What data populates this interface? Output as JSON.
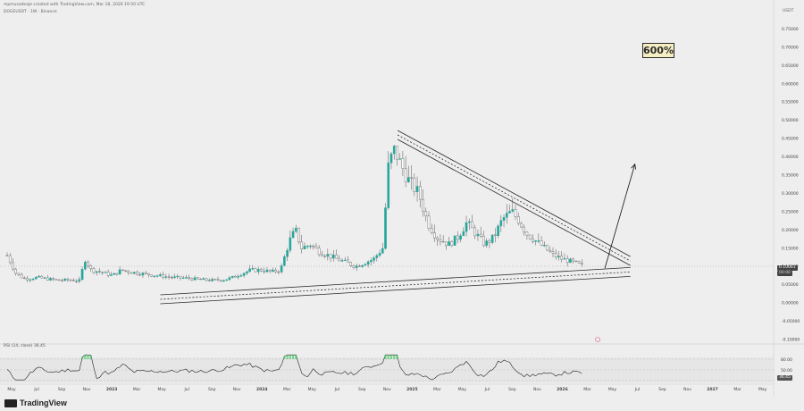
{
  "header": {
    "author_line": "mpmusadeaje created with TradingView.com, Mar 18, 2026 19:50 UTC",
    "symbol_line": "DOGEUSDT · 1W · Binance"
  },
  "annotation": {
    "target_pct": "600%"
  },
  "price_axis": {
    "currency": "USDT",
    "current_price": "0.10061",
    "current_sub": "00:00"
  },
  "rsi": {
    "label": "RSI (14, close) 36.45",
    "current_value": "36.45"
  },
  "footer": {
    "brand": "TradingView"
  },
  "colors": {
    "up": "#26a69a",
    "down": "#555555",
    "line": "#2b2b2b",
    "rsi_over": "#34c759"
  },
  "chart_data": {
    "type": "candlestick",
    "title": "",
    "ylim": [
      -0.1,
      0.8
    ],
    "y_ticks": [
      "0.75000",
      "0.70000",
      "0.65000",
      "0.60000",
      "0.55000",
      "0.50000",
      "0.45000",
      "0.40000",
      "0.35000",
      "0.30000",
      "0.25000",
      "0.20000",
      "0.15000",
      "0.10000",
      "0.05000",
      "0.00000",
      "-0.05000",
      "-0.10000"
    ],
    "x_ticks": [
      "May",
      "Jul",
      "Sep",
      "Nov",
      "2023",
      "Mar",
      "May",
      "Jul",
      "Sep",
      "Nov",
      "2024",
      "Mar",
      "May",
      "Jul",
      "Sep",
      "Nov",
      "2025",
      "Mar",
      "May",
      "Jul",
      "Sep",
      "Nov",
      "2026",
      "Mar",
      "May",
      "Jul",
      "Sep",
      "Nov",
      "2027",
      "Mar",
      "May"
    ],
    "close_path": [
      [
        2022.3,
        0.13
      ],
      [
        2022.36,
        0.08
      ],
      [
        2022.42,
        0.065
      ],
      [
        2022.5,
        0.07
      ],
      [
        2022.58,
        0.065
      ],
      [
        2022.64,
        0.062
      ],
      [
        2022.72,
        0.063
      ],
      [
        2022.78,
        0.06
      ],
      [
        2022.82,
        0.12
      ],
      [
        2022.86,
        0.09
      ],
      [
        2022.92,
        0.085
      ],
      [
        2023.0,
        0.075
      ],
      [
        2023.06,
        0.09
      ],
      [
        2023.12,
        0.085
      ],
      [
        2023.2,
        0.08
      ],
      [
        2023.3,
        0.075
      ],
      [
        2023.4,
        0.07
      ],
      [
        2023.5,
        0.068
      ],
      [
        2023.58,
        0.064
      ],
      [
        2023.66,
        0.062
      ],
      [
        2023.74,
        0.063
      ],
      [
        2023.8,
        0.07
      ],
      [
        2023.86,
        0.08
      ],
      [
        2023.92,
        0.09
      ],
      [
        2024.0,
        0.09
      ],
      [
        2024.06,
        0.085
      ],
      [
        2024.12,
        0.09
      ],
      [
        2024.18,
        0.17
      ],
      [
        2024.22,
        0.2
      ],
      [
        2024.26,
        0.15
      ],
      [
        2024.32,
        0.16
      ],
      [
        2024.38,
        0.14
      ],
      [
        2024.44,
        0.13
      ],
      [
        2024.5,
        0.12
      ],
      [
        2024.56,
        0.11
      ],
      [
        2024.62,
        0.1
      ],
      [
        2024.68,
        0.11
      ],
      [
        2024.74,
        0.12
      ],
      [
        2024.8,
        0.15
      ],
      [
        2024.84,
        0.38
      ],
      [
        2024.88,
        0.42
      ],
      [
        2024.92,
        0.38
      ],
      [
        2024.98,
        0.33
      ],
      [
        2025.04,
        0.3
      ],
      [
        2025.1,
        0.22
      ],
      [
        2025.16,
        0.18
      ],
      [
        2025.24,
        0.16
      ],
      [
        2025.3,
        0.18
      ],
      [
        2025.36,
        0.22
      ],
      [
        2025.42,
        0.19
      ],
      [
        2025.48,
        0.16
      ],
      [
        2025.54,
        0.18
      ],
      [
        2025.6,
        0.23
      ],
      [
        2025.66,
        0.25
      ],
      [
        2025.7,
        0.23
      ],
      [
        2025.76,
        0.19
      ],
      [
        2025.82,
        0.17
      ],
      [
        2025.88,
        0.15
      ],
      [
        2025.94,
        0.13
      ],
      [
        2026.0,
        0.12
      ],
      [
        2026.08,
        0.11
      ],
      [
        2026.14,
        0.1
      ]
    ],
    "triangle": {
      "upper": [
        [
          2024.9,
          0.46
        ],
        [
          2026.45,
          0.115
        ]
      ],
      "lower": [
        [
          2023.32,
          0.01
        ],
        [
          2026.45,
          0.085
        ]
      ]
    },
    "projection": [
      [
        2026.28,
        0.095
      ],
      [
        2026.48,
        0.38
      ]
    ],
    "rsi_levels": [
      80,
      50,
      20
    ],
    "rsi_current": 36.45
  }
}
